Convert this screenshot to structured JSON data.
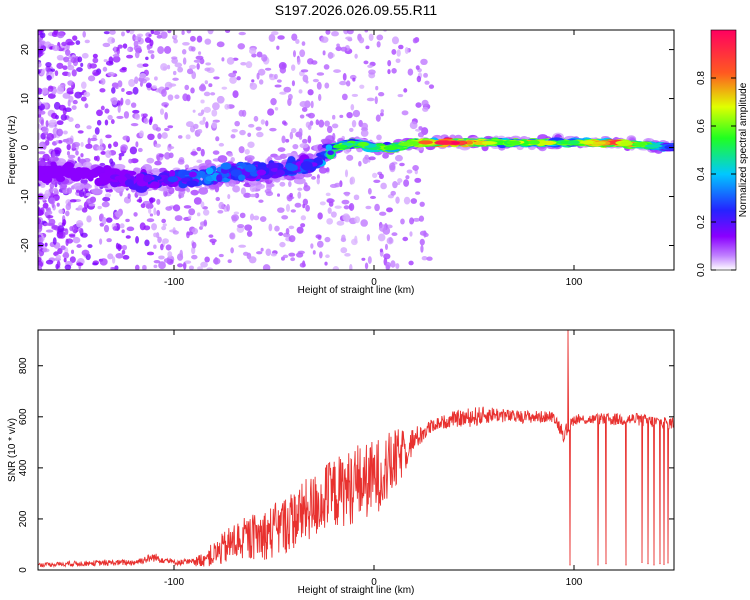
{
  "figure": {
    "title": "S197.2026.026.09.55.R11"
  },
  "colors": {
    "snr_line": "#e8312f",
    "axis": "#000000",
    "colormap": [
      "#ffffff",
      "#9b00ff",
      "#2020ff",
      "#00c8ff",
      "#20ff20",
      "#e0ff00",
      "#ff3030",
      "#ff0060"
    ]
  },
  "chart_data": [
    {
      "type": "heatmap",
      "title": "",
      "xlabel": "Height of straight line (km)",
      "ylabel": "Frequency (Hz)",
      "xlim": [
        -168,
        150
      ],
      "ylim": [
        -25,
        24
      ],
      "xticks": [
        -100,
        0,
        100
      ],
      "yticks": [
        -20,
        -10,
        0,
        10,
        20
      ],
      "colorbar": {
        "label": "Normalized spectral amplitude",
        "range": [
          0.0,
          1.0
        ],
        "ticks": [
          0.0,
          0.2,
          0.4,
          0.6,
          0.8
        ]
      },
      "ridge": {
        "x": [
          -165,
          -150,
          -130,
          -115,
          -100,
          -85,
          -70,
          -55,
          -40,
          -30,
          -20,
          -10,
          0,
          10,
          20,
          40,
          60,
          80,
          100,
          120,
          150
        ],
        "y": [
          -5,
          -5,
          -6,
          -7,
          -6,
          -6,
          -5,
          -5,
          -4,
          -3,
          0,
          1,
          0,
          0,
          1,
          1,
          1,
          1,
          1,
          1,
          0
        ],
        "amplitude": [
          0.15,
          0.15,
          0.2,
          0.25,
          0.3,
          0.4,
          0.35,
          0.3,
          0.35,
          0.3,
          0.6,
          0.55,
          0.55,
          0.6,
          0.7,
          0.95,
          0.6,
          0.7,
          0.6,
          0.9,
          0.3
        ]
      }
    },
    {
      "type": "line",
      "title": "",
      "xlabel": "Height of straight line (km)",
      "ylabel": "SNR (10 * v/v)",
      "xlim": [
        -168,
        150
      ],
      "ylim": [
        0,
        940
      ],
      "xticks": [
        -100,
        0,
        100
      ],
      "yticks": [
        0,
        200,
        400,
        600,
        800
      ],
      "series": [
        {
          "name": "SNR",
          "x": [
            -168,
            -150,
            -120,
            -110,
            -100,
            -90,
            -80,
            -70,
            -60,
            -50,
            -40,
            -30,
            -20,
            -10,
            0,
            10,
            20,
            30,
            40,
            50,
            60,
            70,
            80,
            90,
            95,
            100,
            110,
            120,
            130,
            140,
            150
          ],
          "y": [
            20,
            25,
            30,
            50,
            30,
            30,
            60,
            110,
            130,
            150,
            200,
            250,
            300,
            330,
            360,
            420,
            510,
            570,
            590,
            600,
            610,
            600,
            600,
            600,
            530,
            590,
            590,
            590,
            590,
            580,
            575
          ],
          "spread": [
            8,
            10,
            12,
            18,
            10,
            15,
            50,
            80,
            90,
            110,
            120,
            130,
            140,
            150,
            150,
            130,
            50,
            25,
            30,
            40,
            30,
            25,
            25,
            20,
            30,
            20,
            20,
            25,
            25,
            25,
            25
          ],
          "spikes": [
            {
              "x": 97,
              "y": 945
            },
            {
              "x": 98,
              "y": 20
            },
            {
              "x": 112,
              "y": 20
            },
            {
              "x": 116,
              "y": 25
            },
            {
              "x": 126,
              "y": 20
            },
            {
              "x": 134,
              "y": 30
            },
            {
              "x": 137,
              "y": 25
            },
            {
              "x": 140,
              "y": 20
            },
            {
              "x": 143,
              "y": 25
            },
            {
              "x": 145,
              "y": 22
            },
            {
              "x": 147,
              "y": 28
            }
          ]
        }
      ]
    }
  ]
}
